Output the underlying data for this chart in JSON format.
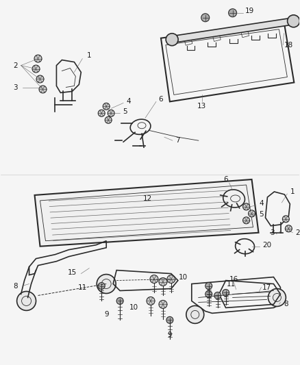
{
  "background_color": "#f5f5f5",
  "line_color": "#2a2a2a",
  "label_color": "#1a1a1a",
  "font_size": 7.5,
  "fig_width": 4.38,
  "fig_height": 5.33,
  "dpi": 100
}
